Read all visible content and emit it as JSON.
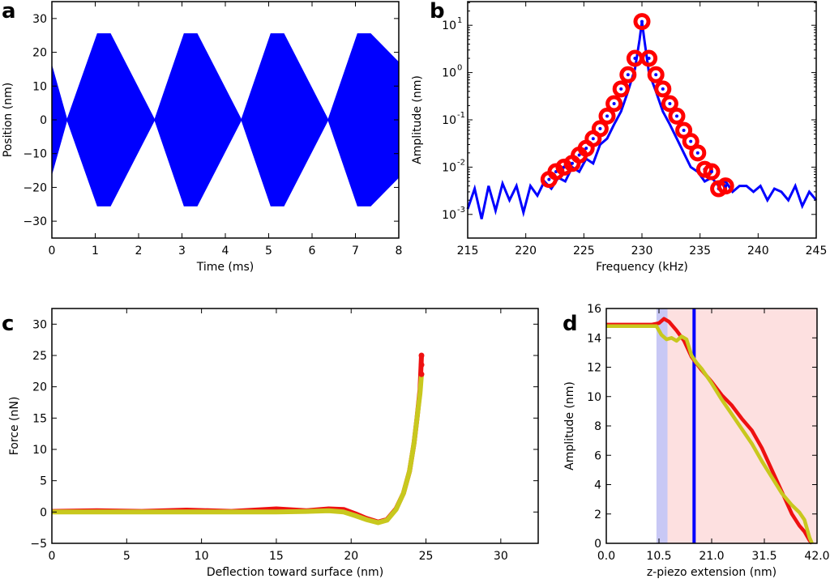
{
  "panels": {
    "a": {
      "label": "a"
    },
    "b": {
      "label": "b"
    },
    "c": {
      "label": "c"
    },
    "d": {
      "label": "d"
    }
  },
  "chart_data": [
    {
      "panel": "a",
      "type": "area",
      "title": "",
      "xlabel": "Time (ms)",
      "ylabel": "Position (nm)",
      "xlim": [
        0,
        8
      ],
      "ylim": [
        -35,
        35
      ],
      "xticks": [
        "0",
        "1",
        "2",
        "3",
        "4",
        "5",
        "6",
        "7",
        "8"
      ],
      "yticks": [
        "30",
        "20",
        "10",
        "0",
        "−10",
        "−20",
        "−30"
      ],
      "color": "#0000ff",
      "series": [
        {
          "x": [
            0,
            0.35,
            1.05,
            1.35,
            2.37,
            3.05,
            3.35,
            4.37,
            5.05,
            5.35,
            6.37,
            7.05,
            7.35,
            8.0
          ],
          "y_upper": [
            16,
            0,
            25.5,
            25.5,
            0,
            25.5,
            25.5,
            0,
            25.5,
            25.5,
            0,
            25.5,
            25.5,
            17
          ],
          "y_lower": [
            -16,
            0,
            -25.5,
            -25.5,
            0,
            -25.5,
            -25.5,
            0,
            -25.5,
            -25.5,
            0,
            -25.5,
            -25.5,
            -17
          ]
        }
      ]
    },
    {
      "panel": "b",
      "type": "line",
      "title": "",
      "xlabel": "Frequency (kHz)",
      "ylabel": "Amplitude (nm)",
      "xlim": [
        215,
        245
      ],
      "ylim_log10": [
        -3.5,
        1.5
      ],
      "xticks": [
        "215",
        "220",
        "225",
        "230",
        "235",
        "240",
        "245"
      ],
      "yticks": [
        "10",
        "10",
        "10",
        "10",
        "10"
      ],
      "yticks_exp": [
        "1",
        "0",
        "-1",
        "-2",
        "-3"
      ],
      "spectrum_color": "#0000ff",
      "marker_color": "#ff0000",
      "series": [
        {
          "name": "",
          "x": [
            215.0,
            215.6,
            216.2,
            216.8,
            217.4,
            218.0,
            218.6,
            219.2,
            219.8,
            220.4,
            221.0,
            221.6,
            222.2,
            222.8,
            223.4,
            224.0,
            224.6,
            225.2,
            225.8,
            226.4,
            227.0,
            227.6,
            228.2,
            228.8,
            229.4,
            229.8,
            230.0,
            230.2,
            230.6,
            231.2,
            231.8,
            232.4,
            233.0,
            233.6,
            234.2,
            234.8,
            235.4,
            236.0,
            236.6,
            237.2,
            237.8,
            238.4,
            239.0,
            239.6,
            240.2,
            240.8,
            241.4,
            242.0,
            242.6,
            243.2,
            243.8,
            244.4,
            245.0
          ],
          "y": [
            0.0013,
            0.0035,
            0.0008,
            0.004,
            0.0012,
            0.0045,
            0.002,
            0.004,
            0.0011,
            0.004,
            0.0025,
            0.005,
            0.0035,
            0.006,
            0.005,
            0.01,
            0.008,
            0.015,
            0.012,
            0.03,
            0.04,
            0.08,
            0.15,
            0.4,
            1.2,
            5.0,
            12.0,
            5.0,
            1.0,
            0.4,
            0.15,
            0.08,
            0.04,
            0.02,
            0.01,
            0.008,
            0.005,
            0.006,
            0.004,
            0.005,
            0.003,
            0.004,
            0.004,
            0.003,
            0.004,
            0.002,
            0.0035,
            0.003,
            0.002,
            0.004,
            0.0015,
            0.003,
            0.002
          ]
        },
        {
          "name": "",
          "x": [
            222.0,
            222.6,
            223.3,
            224.0,
            224.6,
            225.2,
            225.8,
            226.4,
            227.0,
            227.6,
            228.2,
            228.8,
            229.4,
            230.0,
            230.6,
            231.2,
            231.8,
            232.4,
            233.0,
            233.6,
            234.2,
            234.8,
            235.4,
            236.0,
            236.6,
            237.2
          ],
          "y": [
            0.0055,
            0.008,
            0.01,
            0.012,
            0.018,
            0.025,
            0.04,
            0.065,
            0.12,
            0.22,
            0.45,
            0.9,
            2.0,
            12.0,
            2.0,
            0.9,
            0.45,
            0.22,
            0.12,
            0.06,
            0.035,
            0.02,
            0.009,
            0.008,
            0.0035,
            0.004
          ]
        }
      ]
    },
    {
      "panel": "c",
      "type": "line",
      "title": "",
      "xlabel": "Deflection toward surface (nm)",
      "ylabel": "Force (nN)",
      "xlim": [
        0,
        32.5
      ],
      "ylim": [
        -5,
        32.5
      ],
      "xticks": [
        "0",
        "5",
        "10",
        "15",
        "20",
        "25",
        "30"
      ],
      "yticks": [
        "30",
        "25",
        "20",
        "15",
        "10",
        "5",
        "0",
        "−5"
      ],
      "series": [
        {
          "name": "",
          "color": "#ee1111",
          "x": [
            0,
            3,
            6,
            9,
            12,
            15,
            17,
            18.5,
            19.5,
            20.3,
            21.0,
            21.8,
            22.4,
            23.0,
            23.5,
            23.9,
            24.2,
            24.4,
            24.6,
            24.7
          ],
          "y": [
            0.1,
            0.2,
            0.1,
            0.3,
            0.1,
            0.5,
            0.2,
            0.5,
            0.4,
            -0.3,
            -1.0,
            -1.6,
            -1.2,
            0.5,
            3.0,
            6.5,
            11.0,
            15.0,
            19.5,
            25.0
          ]
        },
        {
          "name": "",
          "color": "#c8c81e",
          "x": [
            0,
            3,
            6,
            9,
            12,
            15,
            17,
            18.5,
            19.5,
            20.3,
            21.0,
            21.8,
            22.4,
            23.0,
            23.5,
            23.9,
            24.2,
            24.4,
            24.6,
            24.7
          ],
          "y": [
            0.0,
            0.0,
            0.0,
            0.0,
            0.0,
            0.0,
            0.1,
            0.2,
            0.0,
            -0.6,
            -1.2,
            -1.7,
            -1.3,
            0.4,
            3.0,
            6.5,
            11.0,
            15.0,
            19.0,
            22.0
          ]
        }
      ]
    },
    {
      "panel": "d",
      "type": "line",
      "title": "",
      "xlabel": "z-piezo extension (nm)",
      "ylabel": "Amplitude (nm)",
      "xlim": [
        0,
        42
      ],
      "ylim": [
        0,
        16
      ],
      "xticks": [
        "0.0",
        "10.5",
        "21.0",
        "31.5",
        "42.0"
      ],
      "yticks": [
        "16",
        "14",
        "12",
        "10",
        "8",
        "6",
        "4",
        "2",
        "0"
      ],
      "shaded_regions": [
        {
          "x": [
            10.0,
            12.2
          ],
          "color": "#c8c8f5"
        },
        {
          "x": [
            12.2,
            42.0
          ],
          "color": "#fde0e0"
        }
      ],
      "vline": {
        "x": 17.5,
        "color": "#0000ff"
      },
      "series": [
        {
          "name": "",
          "color": "#ee1111",
          "x": [
            0,
            9,
            10.5,
            11.5,
            12.5,
            14.0,
            15.5,
            17.0,
            19.0,
            21.0,
            23.0,
            25.0,
            27.0,
            29.0,
            31.0,
            33.0,
            35.0,
            37.0,
            38.5,
            39.5,
            40.5,
            41.0
          ],
          "y": [
            14.9,
            14.9,
            15.0,
            15.3,
            15.1,
            14.5,
            13.8,
            12.7,
            11.8,
            11.0,
            10.1,
            9.4,
            8.5,
            7.7,
            6.5,
            5.0,
            3.5,
            2.0,
            1.2,
            0.8,
            0.2,
            0.0
          ]
        },
        {
          "name": "",
          "color": "#c8c81e",
          "x": [
            0,
            9,
            10.0,
            11.0,
            12.0,
            13.0,
            14.0,
            15.0,
            16.0,
            17.0,
            18.0,
            19.0,
            21.0,
            23.0,
            25.0,
            27.0,
            29.0,
            31.0,
            33.0,
            35.0,
            37.0,
            38.5,
            39.5,
            40.5,
            41.0
          ],
          "y": [
            14.8,
            14.8,
            14.8,
            14.2,
            13.9,
            14.0,
            13.8,
            14.1,
            13.9,
            12.8,
            12.3,
            11.9,
            10.9,
            9.8,
            8.8,
            7.8,
            6.8,
            5.6,
            4.5,
            3.4,
            2.6,
            2.1,
            1.6,
            0.4,
            0.0
          ]
        }
      ]
    }
  ]
}
